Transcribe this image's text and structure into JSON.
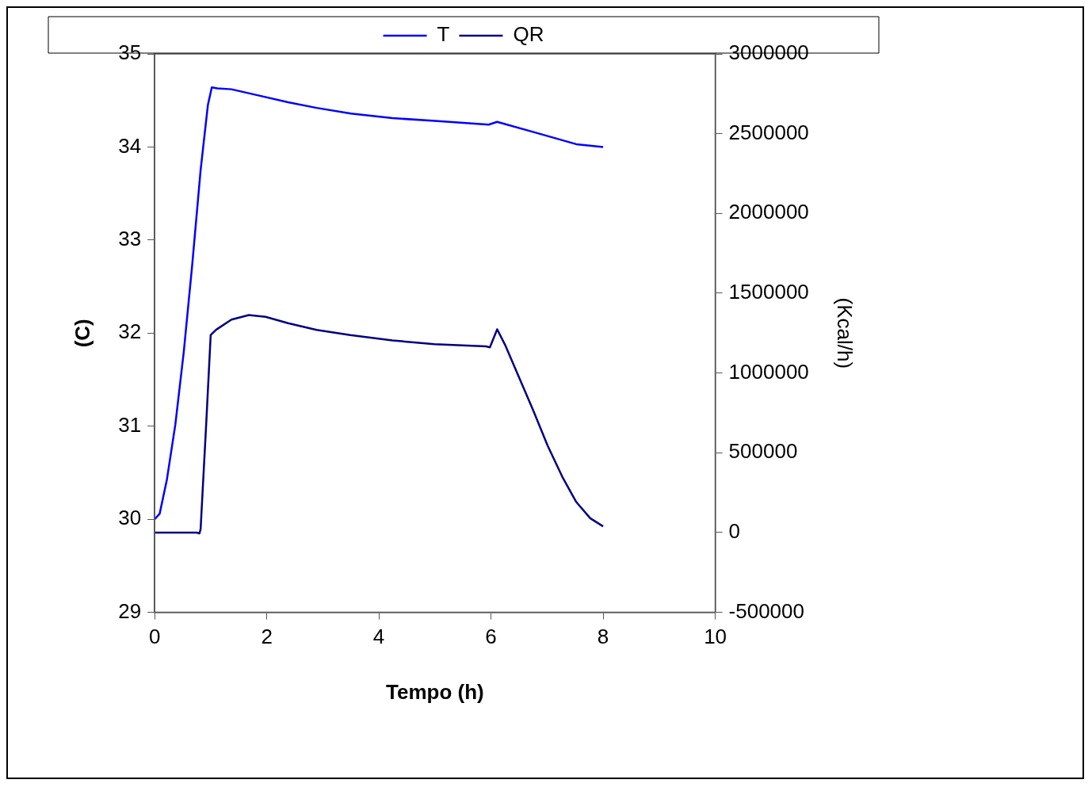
{
  "chart_data": {
    "type": "line",
    "xlabel": "Tempo (h)",
    "ylabel": "(C)",
    "y2label": "(Kcal/h)",
    "xlim": [
      0,
      10
    ],
    "xticks": [
      0,
      2,
      4,
      6,
      8,
      10
    ],
    "ylim": [
      29,
      35
    ],
    "yticks": [
      29,
      30,
      31,
      32,
      33,
      34,
      35
    ],
    "y2lim": [
      -500000,
      3000000
    ],
    "y2ticks": [
      -500000,
      0,
      500000,
      1000000,
      1500000,
      2000000,
      2500000,
      3000000
    ],
    "legend": "top",
    "grid": false,
    "marker": "none",
    "line_style": "solid",
    "series": [
      {
        "name": "T",
        "color": "#0000ff",
        "x": [
          0,
          0.09,
          0.22,
          0.37,
          0.52,
          0.67,
          0.82,
          0.95,
          1.02,
          1.12,
          1.37,
          1.88,
          2.38,
          2.89,
          3.5,
          4.24,
          5.0,
          5.96,
          6.11,
          6.76,
          7.52,
          8.0
        ],
        "values": [
          30.0,
          30.06,
          30.43,
          31.02,
          31.8,
          32.73,
          33.75,
          34.45,
          34.64,
          34.63,
          34.62,
          34.55,
          34.48,
          34.42,
          34.36,
          34.31,
          34.28,
          34.24,
          34.27,
          34.16,
          34.03,
          34.0
        ]
      },
      {
        "name": "QR",
        "color": "#000080",
        "axis": "y2",
        "x": [
          0,
          0.75,
          0.8,
          0.82,
          0.92,
          1.0,
          1.1,
          1.37,
          1.68,
          1.98,
          2.38,
          2.89,
          3.49,
          4.24,
          4.99,
          5.91,
          5.98,
          6.11,
          6.26,
          6.51,
          6.76,
          7.01,
          7.27,
          7.52,
          7.77,
          8.0
        ],
        "values": [
          0,
          0,
          -5000,
          21000,
          681000,
          1238000,
          1272000,
          1335000,
          1363000,
          1352000,
          1312000,
          1270000,
          1238000,
          1204000,
          1181000,
          1167000,
          1161000,
          1274000,
          1170000,
          965000,
          760000,
          545000,
          351000,
          192000,
          90000,
          39000
        ]
      }
    ]
  }
}
